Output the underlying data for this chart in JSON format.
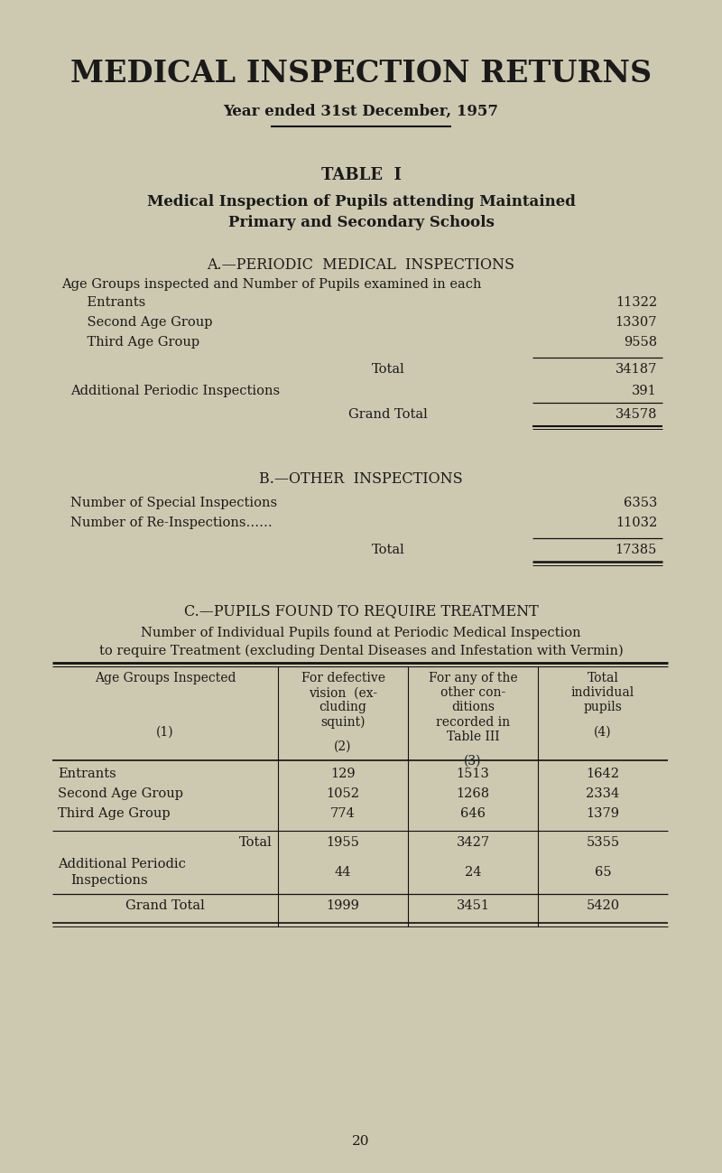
{
  "bg_color": "#cdc9b0",
  "text_color": "#1a1a1a",
  "title": "MEDICAL INSPECTION RETURNS",
  "subtitle": "Year ended 31st December, 1957",
  "table_label": "TABLE  I",
  "table_subtitle1": "Medical Inspection of Pupils attending Maintained",
  "table_subtitle2": "Primary and Secondary Schools",
  "section_a": "A.—PERIODIC  MEDICAL  INSPECTIONS",
  "section_a_intro": "Age Groups inspected and Number of Pupils examined in each",
  "section_a_rows": [
    [
      "    Entrants",
      "11322"
    ],
    [
      "    Second Age Group",
      "13307"
    ],
    [
      "    Third Age Group",
      "9558"
    ]
  ],
  "section_a_total_label": "Total",
  "section_a_total": "34187",
  "section_a_addl_label": "Additional Periodic Inspections",
  "section_a_addl": "391",
  "section_a_grand_label": "Grand Total",
  "section_a_grand": "34578",
  "section_b": "B.—OTHER  INSPECTIONS",
  "section_b_rows": [
    [
      "Number of Special Inspections",
      "6353"
    ],
    [
      "Number of Re-Inspections……",
      "11032"
    ]
  ],
  "section_b_total_label": "Total",
  "section_b_total": "17385",
  "section_c": "C.—PUPILS FOUND TO REQUIRE TREATMENT",
  "section_c_intro1": "Number of Individual Pupils found at Periodic Medical Inspection",
  "section_c_intro2": "to require Treatment (excluding Dental Diseases and Infestation with Vermin)",
  "table_c_rows": [
    [
      "Entrants",
      "129",
      "1513",
      "1642"
    ],
    [
      "Second Age Group",
      "1052",
      "1268",
      "2334"
    ],
    [
      "Third Age Group",
      "774",
      "646",
      "1379"
    ]
  ],
  "table_c_total": [
    "Total",
    "1955",
    "3427",
    "5355"
  ],
  "table_c_addl": [
    "Additional Periodic\n    Inspections",
    "44",
    "24",
    "65"
  ],
  "table_c_grand": [
    "Grand Total",
    "1999",
    "3451",
    "5420"
  ],
  "page_number": "20",
  "fig_w": 8.0,
  "fig_h": 12.99,
  "dpi": 100
}
